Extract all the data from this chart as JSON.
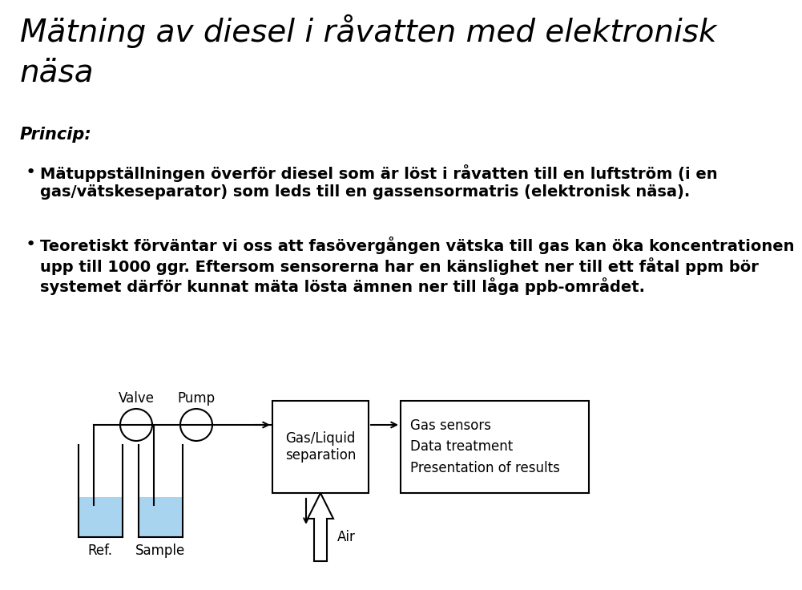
{
  "title_line1": "Mätning av diesel i råvatten med elektronisk",
  "title_line2": "näsa",
  "princip_label": "Princip:",
  "bullet1": "Mätuppställningen överför diesel som är löst i råvatten till en luftström (i en\ngas/vätskeseparator) som leds till en gassensormatris (elektronisk näsa).",
  "bullet2": "Teoretiskt förväntar vi oss att fasövergången vätska till gas kan öka koncentrationen\nupp till 1000 ggr. Eftersom sensorerna har en känslighet ner till ett fåtal ppm bör\nsystemet därför kunnat mäta lösta ämnen ner till låga ppb-området.",
  "valve_label": "Valve",
  "pump_label": "Pump",
  "gas_liquid_label": "Gas/Liquid\nseparation",
  "sensor_box_label": "Gas sensors\nData treatment\nPresentation of results",
  "air_label": "Air",
  "ref_label": "Ref.",
  "sample_label": "Sample",
  "bg_color": "#ffffff",
  "text_color": "#000000",
  "liquid_color": "#a8d4f0",
  "lc": "#000000",
  "title_fontsize": 28,
  "princip_fontsize": 15,
  "bullet_fontsize": 14,
  "diagram_fontsize": 12
}
